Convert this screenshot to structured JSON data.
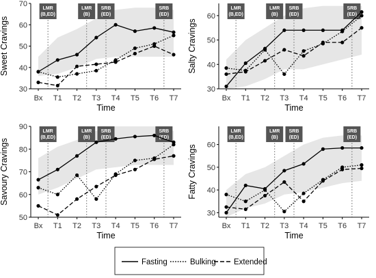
{
  "chart_data": [
    {
      "type": "line",
      "ylabel": "Sweet Cravings",
      "xlabel": "Time",
      "categories": [
        "Bx",
        "T1",
        "T2",
        "T3",
        "T4",
        "T5",
        "T6",
        "T7"
      ],
      "ylim": [
        30,
        70
      ],
      "yticks": [
        30,
        40,
        50,
        60,
        70
      ],
      "band": {
        "lower": [
          36,
          37,
          40,
          44,
          45,
          45,
          45,
          45
        ],
        "upper": [
          45,
          54,
          58,
          63,
          67,
          68,
          68,
          67
        ]
      },
      "events": [
        {
          "label": "LMR\n(B,ED)",
          "x": 0.5
        },
        {
          "label": "LMR\n(B)",
          "x": 2.5
        },
        {
          "label": "SRB\n(ED)",
          "x": 3.5
        },
        {
          "label": "SRB\n(ED)",
          "x": 6.5
        }
      ],
      "series": [
        {
          "name": "Fasting",
          "values": [
            38,
            43.5,
            46,
            54,
            60,
            57,
            58.5,
            56.5
          ]
        },
        {
          "name": "Bulking",
          "values": [
            38,
            35.5,
            37,
            38.5,
            43.5,
            49,
            51,
            55
          ]
        },
        {
          "name": "Extended",
          "values": [
            33,
            31.5,
            40.5,
            41.5,
            42.5,
            46.5,
            50,
            46
          ]
        }
      ]
    },
    {
      "type": "line",
      "ylabel": "Salty Cravings",
      "xlabel": "Time",
      "categories": [
        "Bx",
        "T1",
        "T2",
        "T3",
        "T4",
        "T5",
        "T6",
        "T7"
      ],
      "ylim": [
        30,
        65
      ],
      "yticks": [
        30,
        40,
        50,
        60
      ],
      "band": {
        "lower": [
          27,
          31,
          34,
          38,
          38,
          40,
          42,
          44
        ],
        "upper": [
          42,
          50,
          55,
          60,
          63,
          64,
          64,
          64
        ]
      },
      "events": [
        {
          "label": "LMR\n(B,ED)",
          "x": 0.5
        },
        {
          "label": "LMR\n(B)",
          "x": 2.5
        },
        {
          "label": "SRB\n(ED)",
          "x": 3.5
        },
        {
          "label": "SRB\n(ED)",
          "x": 6.5
        }
      ],
      "series": [
        {
          "name": "Fasting",
          "values": [
            31,
            40.5,
            46.5,
            54,
            54,
            54,
            54,
            61.5
          ]
        },
        {
          "name": "Bulking",
          "values": [
            38.5,
            37.5,
            46,
            36,
            45.5,
            48.5,
            53.5,
            60
          ]
        },
        {
          "name": "Extended",
          "values": [
            36,
            37,
            41.5,
            46,
            43.5,
            49,
            49,
            55
          ]
        }
      ]
    },
    {
      "type": "line",
      "ylabel": "Savoury Cravings",
      "xlabel": "Time",
      "categories": [
        "Bx",
        "T1",
        "T2",
        "T3",
        "T4",
        "T5",
        "T6",
        "T7"
      ],
      "ylim": [
        50,
        90
      ],
      "yticks": [
        50,
        60,
        70,
        80,
        90
      ],
      "band": {
        "lower": [
          60,
          63,
          67,
          71,
          72,
          73,
          73,
          73
        ],
        "upper": [
          76,
          81,
          84,
          88,
          91,
          92,
          92,
          88
        ]
      },
      "events": [
        {
          "label": "LMR\n(B,ED)",
          "x": 0.5
        },
        {
          "label": "LMR\n(B)",
          "x": 2.5
        },
        {
          "label": "SRB\n(ED)",
          "x": 3.5
        },
        {
          "label": "SRB\n(ED)",
          "x": 6.5
        }
      ],
      "series": [
        {
          "name": "Fasting",
          "values": [
            66.5,
            71,
            77,
            83,
            84.5,
            85.5,
            86,
            83
          ]
        },
        {
          "name": "Bulking",
          "values": [
            63,
            60,
            68.5,
            58,
            69,
            75,
            76,
            82
          ]
        },
        {
          "name": "Extended",
          "values": [
            55,
            51,
            58,
            63.5,
            68.5,
            71,
            75.5,
            77
          ]
        }
      ]
    },
    {
      "type": "line",
      "ylabel": "Fatty Cravings",
      "xlabel": "Time",
      "categories": [
        "Bx",
        "T1",
        "T2",
        "T3",
        "T4",
        "T5",
        "T6",
        "T7"
      ],
      "ylim": [
        28,
        68
      ],
      "yticks": [
        30,
        40,
        50,
        60
      ],
      "band": {
        "lower": [
          28,
          32,
          34,
          38,
          39,
          41,
          43,
          44
        ],
        "upper": [
          40,
          47,
          50,
          55,
          60,
          63,
          64,
          64
        ]
      },
      "events": [
        {
          "label": "LMR\n(B,ED)",
          "x": 0.5
        },
        {
          "label": "LMR\n(B)",
          "x": 2.5
        },
        {
          "label": "SRB\n(ED)",
          "x": 3.5
        },
        {
          "label": "SRB\n(ED)",
          "x": 6.5
        }
      ],
      "series": [
        {
          "name": "Fasting",
          "values": [
            30,
            42,
            40.5,
            48.5,
            51.5,
            58,
            58.5,
            58.5
          ]
        },
        {
          "name": "Bulking",
          "values": [
            38,
            35,
            40,
            30.5,
            38.5,
            44.5,
            50,
            51
          ]
        },
        {
          "name": "Extended",
          "values": [
            32.5,
            31.5,
            37.5,
            43.5,
            35,
            44,
            49,
            49.5
          ]
        }
      ]
    }
  ],
  "legend": {
    "position": "bottom-center",
    "items": [
      {
        "name": "Fasting",
        "dash": "solid"
      },
      {
        "name": "Bulking",
        "dash": "dotted"
      },
      {
        "name": "Extended",
        "dash": "dashed"
      }
    ]
  },
  "style": {
    "line_color": "#000000",
    "band_color": "#e6e6e6",
    "event_box_color": "#555555",
    "event_line_color": "#888888",
    "axis_color": "#000000"
  }
}
